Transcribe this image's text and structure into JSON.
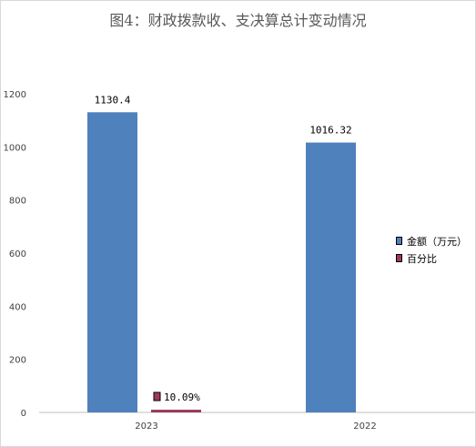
{
  "chart_data": {
    "type": "bar",
    "title": "图4：财政拨款收、支决算总计变动情况",
    "categories": [
      "2023",
      "2022"
    ],
    "series": [
      {
        "name": "金额（万元）",
        "values": [
          1130.4,
          1016.32
        ],
        "labels": [
          "1130.4",
          "1016.32"
        ],
        "color": "#4f81bd"
      },
      {
        "name": "百分比",
        "values": [
          10.09,
          null
        ],
        "labels": [
          "10.09%",
          null
        ],
        "color": "#9b3b57"
      }
    ],
    "yticks": [
      "0",
      "200",
      "400",
      "600",
      "800",
      "1000",
      "1200"
    ],
    "ylim": [
      0,
      1200
    ],
    "grid": false,
    "legend_position": "right"
  }
}
